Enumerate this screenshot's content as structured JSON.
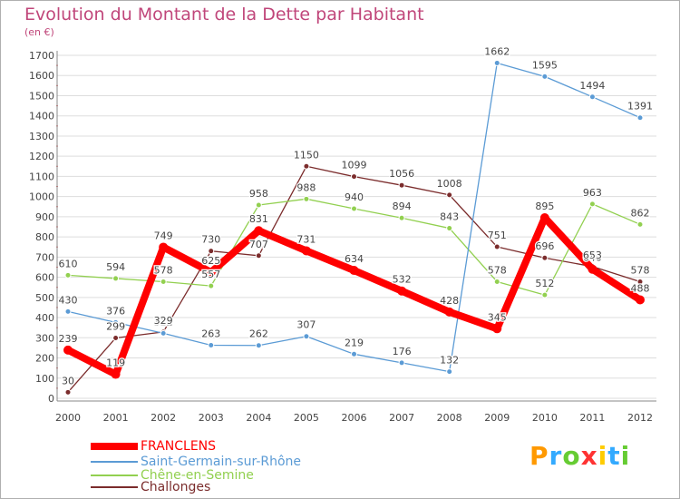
{
  "header": {
    "title": "Evolution du Montant de la Dette par Habitant",
    "subtitle": "(en €)"
  },
  "colors": {
    "title": "#c0467a",
    "axis": "#555555",
    "grid": "#dddddd",
    "tick_marks": "#e07070"
  },
  "chart_data": {
    "type": "line",
    "title": "Evolution du Montant de la Dette par Habitant",
    "subtitle": "(en €)",
    "xlabel": "",
    "ylabel": "",
    "x": [
      2000,
      2001,
      2002,
      2003,
      2004,
      2005,
      2006,
      2007,
      2008,
      2009,
      2010,
      2011,
      2012
    ],
    "ylim": [
      0,
      1700
    ],
    "yticks": [
      0,
      100,
      200,
      300,
      400,
      500,
      600,
      700,
      800,
      900,
      1000,
      1100,
      1200,
      1300,
      1400,
      1500,
      1600,
      1700
    ],
    "grid": true,
    "legend_position": "bottom-left",
    "series": [
      {
        "name": "FRANCLENS",
        "color": "#ff0000",
        "values": [
          239,
          119,
          749,
          625,
          831,
          731,
          634,
          532,
          428,
          345,
          895,
          640,
          488
        ]
      },
      {
        "name": "Saint-Germain-sur-Rhône",
        "color": "#5b9bd5",
        "values": [
          430,
          376,
          322,
          263,
          262,
          307,
          219,
          176,
          132,
          1662,
          1595,
          1494,
          1391
        ]
      },
      {
        "name": "Chêne-en-Semine",
        "color": "#92d050",
        "values": [
          610,
          594,
          578,
          557,
          958,
          988,
          940,
          894,
          843,
          578,
          512,
          963,
          862
        ]
      },
      {
        "name": "Challonges",
        "color": "#7b2c2c",
        "values": [
          30,
          299,
          329,
          730,
          707,
          1150,
          1099,
          1056,
          1008,
          751,
          696,
          653,
          578
        ]
      }
    ]
  },
  "legend": {
    "items": [
      {
        "label": "FRANCLENS",
        "color": "#ff0000"
      },
      {
        "label": "Saint-Germain-sur-Rhône",
        "color": "#5b9bd5"
      },
      {
        "label": "Chêne-en-Semine",
        "color": "#92d050"
      },
      {
        "label": "Challonges",
        "color": "#7b2c2c"
      }
    ]
  },
  "brand": {
    "letters": [
      "P",
      "r",
      "o",
      "x",
      "i",
      "t",
      "i"
    ],
    "colors": [
      "#ff9900",
      "#33aaff",
      "#66cc33",
      "#ff3333",
      "#ffcc00",
      "#33aaff",
      "#66cc33"
    ]
  }
}
